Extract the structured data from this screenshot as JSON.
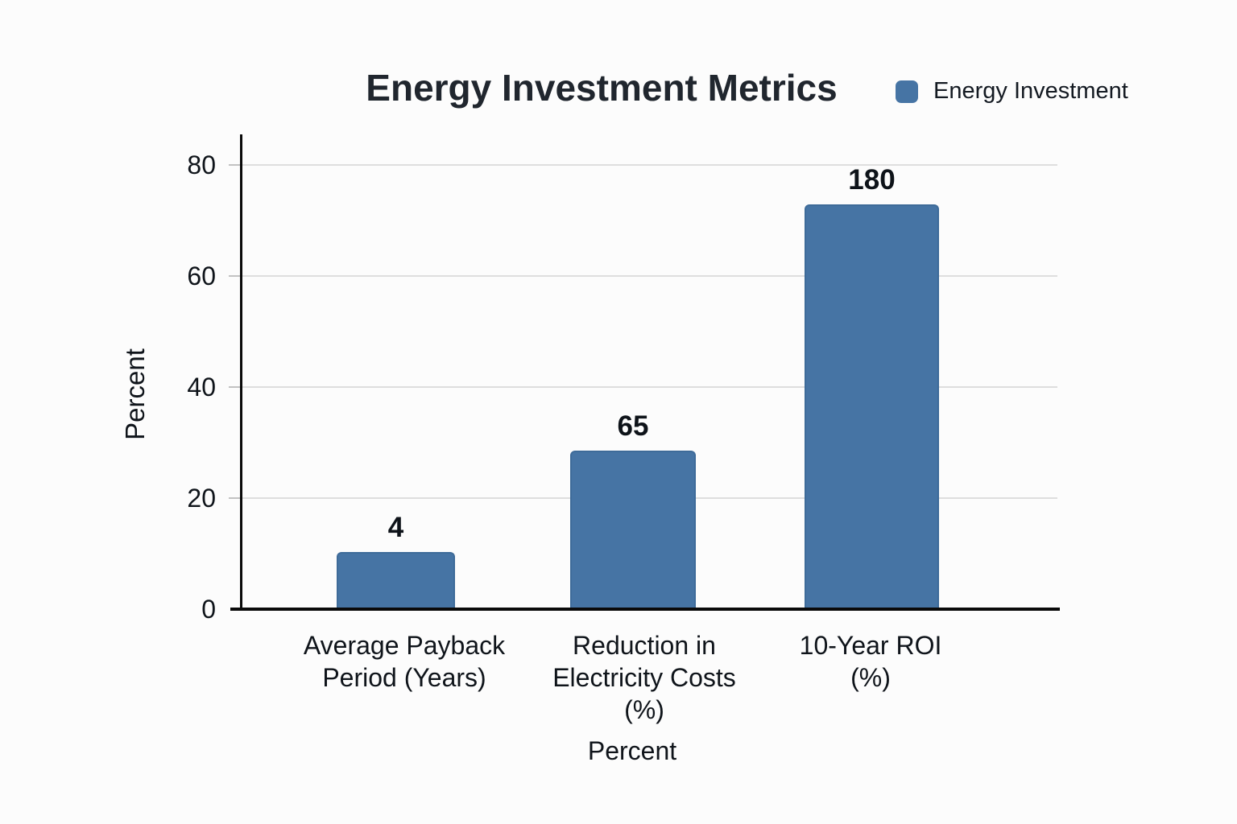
{
  "title": "Energy Investment Metrics",
  "legend": {
    "label": "Energy Investment"
  },
  "colors": {
    "bar_fill": "#4674A4",
    "bar_edge": "#3E6B99",
    "title_text": "#20262E",
    "text": "#0F141A",
    "gridline": "#DEDEDE",
    "axis_line": "#0A0A0A",
    "background": "#FCFCFC"
  },
  "y_axis": {
    "title": "Percent",
    "tick_labels": [
      "80",
      "60",
      "40",
      "20",
      "0"
    ]
  },
  "x_axis": {
    "title": "Percent"
  },
  "chart_data": {
    "type": "bar",
    "title": "Energy Investment Metrics",
    "categories": [
      "Average Payback Period (Years)",
      "Reduction in Electricity Costs (%)",
      "10-Year ROI (%)"
    ],
    "categories_lines": [
      [
        "Average Payback",
        "Period (Years)"
      ],
      [
        "Reduction in",
        "Electricity Costs",
        "(%)"
      ],
      [
        "10-Year ROI",
        "(%)"
      ]
    ],
    "series": [
      {
        "name": "Energy Investment",
        "values": [
          4,
          65,
          180
        ]
      }
    ],
    "value_labels": [
      "4",
      "65",
      "180"
    ],
    "bar_top_positions_axis_units": [
      10,
      28.3,
      72.6
    ],
    "xlabel": "Percent",
    "ylabel": "Percent",
    "ylim": [
      0,
      85
    ],
    "yticks": [
      0,
      20,
      40,
      60,
      80
    ],
    "grid": "horizontal",
    "legend_position": "top-right"
  }
}
